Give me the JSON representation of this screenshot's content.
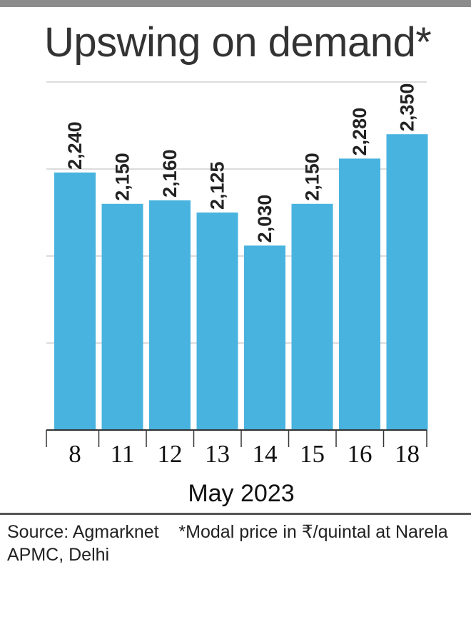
{
  "colors": {
    "top_rule": "#8c8c8c",
    "bar": "#49b3df",
    "grid": "#c8c8c8",
    "axis": "#333333"
  },
  "chart_data": {
    "type": "bar",
    "title": "Upswing on demand*",
    "categories": [
      "8",
      "11",
      "12",
      "13",
      "14",
      "15",
      "16",
      "18"
    ],
    "values": [
      2240,
      2150,
      2160,
      2125,
      2030,
      2150,
      2280,
      2350
    ],
    "value_labels": [
      "2,240",
      "2,150",
      "2,160",
      "2,125",
      "2,030",
      "2,150",
      "2,280",
      "2,350"
    ],
    "xlabel": "May 2023",
    "ylabel": "",
    "ylim": [
      1500,
      2500
    ],
    "gridlines": [
      1750,
      2000,
      2250,
      2500
    ],
    "grid": true,
    "legend": "none"
  },
  "footnote": {
    "source": "Source: Agmarknet",
    "note": "*Modal price in ₹/quintal at Narela APMC, Delhi"
  }
}
